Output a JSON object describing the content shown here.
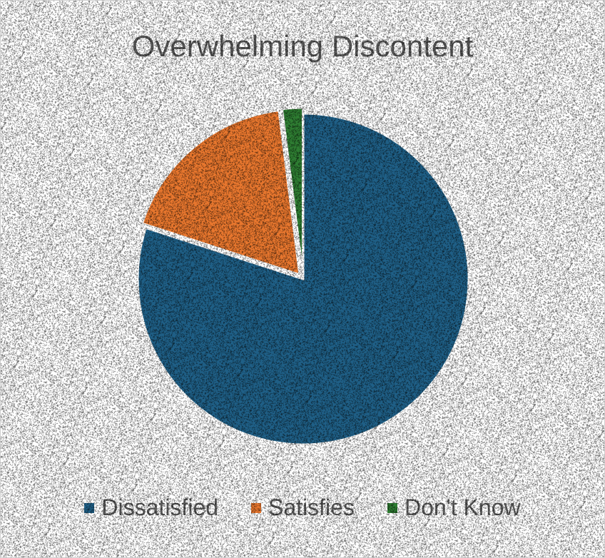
{
  "chart_data": {
    "type": "pie",
    "title": "Overwhelming Discontent",
    "categories": [
      "Dissatisfied",
      "Satisfies",
      "Don't Know"
    ],
    "values": [
      80,
      18,
      2
    ],
    "colors": [
      "#1f5f86",
      "#e8772e",
      "#2e7d32"
    ],
    "legend": "bottom",
    "start_angle_deg": 0,
    "direction": "clockwise"
  }
}
